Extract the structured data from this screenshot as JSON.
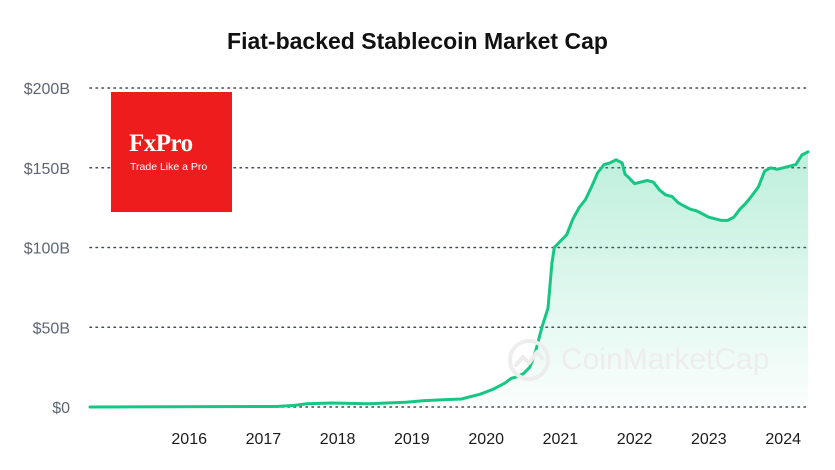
{
  "chart_data": {
    "type": "area",
    "title": "Fiat-backed Stablecoin Market Cap",
    "xlabel": "",
    "ylabel": "",
    "x_tick_labels": [
      "2016",
      "2017",
      "2018",
      "2019",
      "2020",
      "2021",
      "2022",
      "2023",
      "2024"
    ],
    "y_tick_labels": [
      "$0",
      "$50B",
      "$100B",
      "$150B",
      "$200B"
    ],
    "ylim": [
      0,
      200
    ],
    "y_unit": "billion USD",
    "xlim": [
      "2015-03-01",
      "2024-10-31"
    ],
    "grid": "horizontal dotted",
    "line_color": "#16c784",
    "fill_color": "#16c784",
    "series": [
      {
        "x": [
          "2015-03-01",
          "2017-09-01",
          "2017-12-01",
          "2018-02-01",
          "2018-06-01",
          "2018-12-01",
          "2019-03-01",
          "2019-06-01",
          "2019-09-01",
          "2019-12-01",
          "2020-03-01",
          "2020-06-01",
          "2020-08-01",
          "2020-09-01",
          "2020-10-01",
          "2020-11-01",
          "2020-12-01",
          "2021-01-01",
          "2021-02-01",
          "2021-03-01",
          "2021-04-01",
          "2021-05-01",
          "2021-05-20",
          "2021-06-01",
          "2021-07-01",
          "2021-08-01",
          "2021-09-01",
          "2021-10-01",
          "2021-11-01",
          "2021-12-01",
          "2022-01-01",
          "2022-02-01",
          "2022-03-01",
          "2022-04-01",
          "2022-05-01",
          "2022-05-15",
          "2022-06-01",
          "2022-07-01",
          "2022-08-01",
          "2022-09-01",
          "2022-10-01",
          "2022-11-01",
          "2022-12-01",
          "2023-01-01",
          "2023-02-01",
          "2023-03-01",
          "2023-04-01",
          "2023-05-01",
          "2023-06-01",
          "2023-07-01",
          "2023-08-01",
          "2023-09-01",
          "2023-10-01",
          "2023-11-01",
          "2023-12-01",
          "2024-01-01",
          "2024-02-01",
          "2024-03-01",
          "2024-04-01",
          "2024-05-01",
          "2024-06-01",
          "2024-07-01",
          "2024-08-01",
          "2024-09-01",
          "2024-10-01",
          "2024-10-31"
        ],
        "values": [
          0,
          0.3,
          1,
          2,
          2.5,
          2,
          2.5,
          3,
          4,
          4.5,
          5,
          8,
          11,
          13,
          15,
          18,
          19,
          21,
          25,
          35,
          50,
          62,
          90,
          100,
          104,
          108,
          118,
          125,
          130,
          138,
          147,
          152,
          153,
          155,
          153,
          146,
          144,
          140,
          141,
          142,
          141,
          136,
          133,
          132,
          128,
          126,
          124,
          123,
          121,
          119,
          118,
          117,
          117,
          119,
          124,
          128,
          133,
          138,
          148,
          150,
          149,
          150,
          151,
          152,
          158,
          160
        ]
      }
    ]
  },
  "logo": {
    "brand": "FxPro",
    "tagline": "Trade Like a Pro",
    "color": "#ee1c1c"
  },
  "watermark": {
    "text": "CoinMarketCap",
    "icon": "coinmarketcap-logo-icon"
  }
}
